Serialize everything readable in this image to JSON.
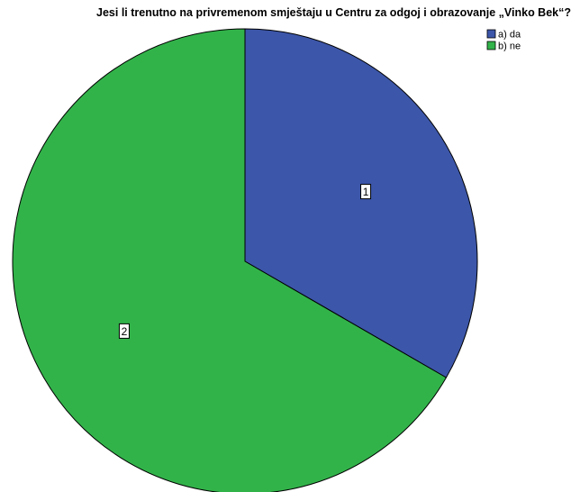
{
  "chart_data": {
    "type": "pie",
    "title": "Jesi li trenutno na privremenom smještaju u Centru za odgoj i obrazovanje „Vinko Bek“?",
    "categories": [
      "a) da",
      "b) ne"
    ],
    "values": [
      1,
      2
    ],
    "data_labels": [
      "1",
      "2"
    ],
    "colors": [
      "#3c56a9",
      "#32b34a"
    ],
    "start": "12 o'clock",
    "direction": "clockwise",
    "legend": {
      "placement": "top-right",
      "entries": [
        "a) da",
        "b) ne"
      ]
    }
  }
}
